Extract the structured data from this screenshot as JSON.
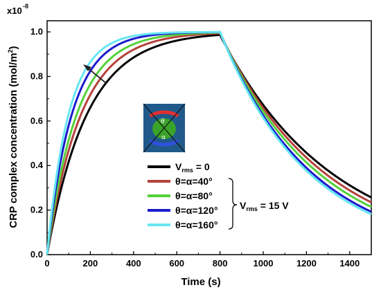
{
  "chart_data": {
    "type": "line",
    "title": "",
    "xlabel": "Time (s)",
    "ylabel": "CRP complex concentration (mol/m",
    "ylabel_sup": "2",
    "ylabel_end": ")",
    "y_scale_label": "x10",
    "y_scale_exp": "-8",
    "xlim": [
      0,
      1500
    ],
    "ylim": [
      0,
      1.05
    ],
    "xticks": [
      0,
      200,
      400,
      600,
      800,
      1000,
      1200,
      1400
    ],
    "yticks": [
      0.0,
      0.2,
      0.4,
      0.6,
      0.8,
      1.0
    ],
    "ytick_labels": [
      "0.0",
      "0.2",
      "0.4",
      "0.6",
      "0.8",
      "1.0"
    ],
    "grid": false,
    "legend_position": "center-bottom",
    "switch_time": 800,
    "series": [
      {
        "name_main": "V",
        "name_sub": "rms",
        "name_rest": " = 0",
        "color": "#000000",
        "rise_tau": 185,
        "decay_tau": 520
      },
      {
        "name_main": "θ=α=40°",
        "name_sub": "",
        "name_rest": "",
        "color": "#b5413a",
        "rise_tau": 158,
        "decay_tau": 485
      },
      {
        "name_main": "θ=α=80°",
        "name_sub": "",
        "name_rest": "",
        "color": "#55d13a",
        "rise_tau": 138,
        "decay_tau": 455
      },
      {
        "name_main": "θ=α=120°",
        "name_sub": "",
        "name_rest": "",
        "color": "#1a1acc",
        "rise_tau": 115,
        "decay_tau": 425
      },
      {
        "name_main": "θ=α=160°",
        "name_sub": "",
        "name_rest": "",
        "color": "#66e6f2",
        "rise_tau": 100,
        "decay_tau": 410
      }
    ],
    "group_annotation": {
      "main": "V",
      "sub": "rms",
      "rest": " = 15 V"
    },
    "inset_labels": {
      "theta": "θ",
      "alpha": "α"
    }
  }
}
